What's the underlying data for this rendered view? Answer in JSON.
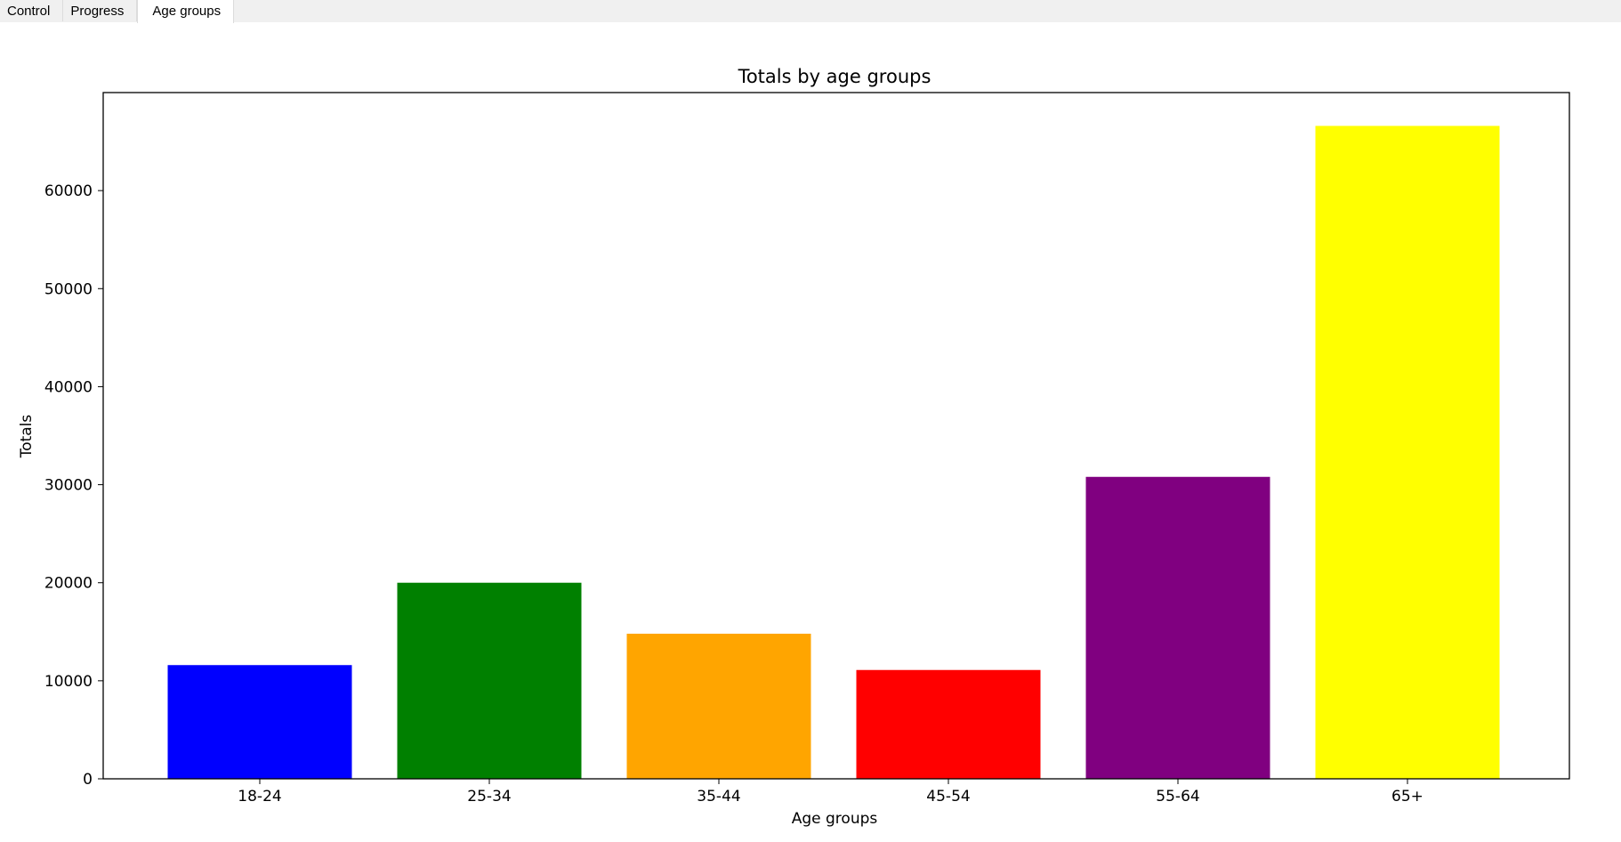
{
  "tabs": [
    {
      "label": "Control",
      "active": false
    },
    {
      "label": "Progress",
      "active": false
    },
    {
      "label": "Age groups",
      "active": true
    }
  ],
  "chart_data": {
    "type": "bar",
    "title": "Totals  by age groups",
    "xlabel": "Age groups",
    "ylabel": "Totals",
    "categories": [
      "18-24",
      "25-34",
      "35-44",
      "45-54",
      "55-64",
      "65+"
    ],
    "values": [
      11600,
      20000,
      14800,
      11100,
      30800,
      66600
    ],
    "colors": [
      "#0000ff",
      "#008000",
      "#ffa500",
      "#ff0000",
      "#800080",
      "#ffff00"
    ],
    "ylim": [
      0,
      70000
    ],
    "yticks": [
      0,
      10000,
      20000,
      30000,
      40000,
      50000,
      60000
    ],
    "grid": false,
    "legend": "none"
  }
}
